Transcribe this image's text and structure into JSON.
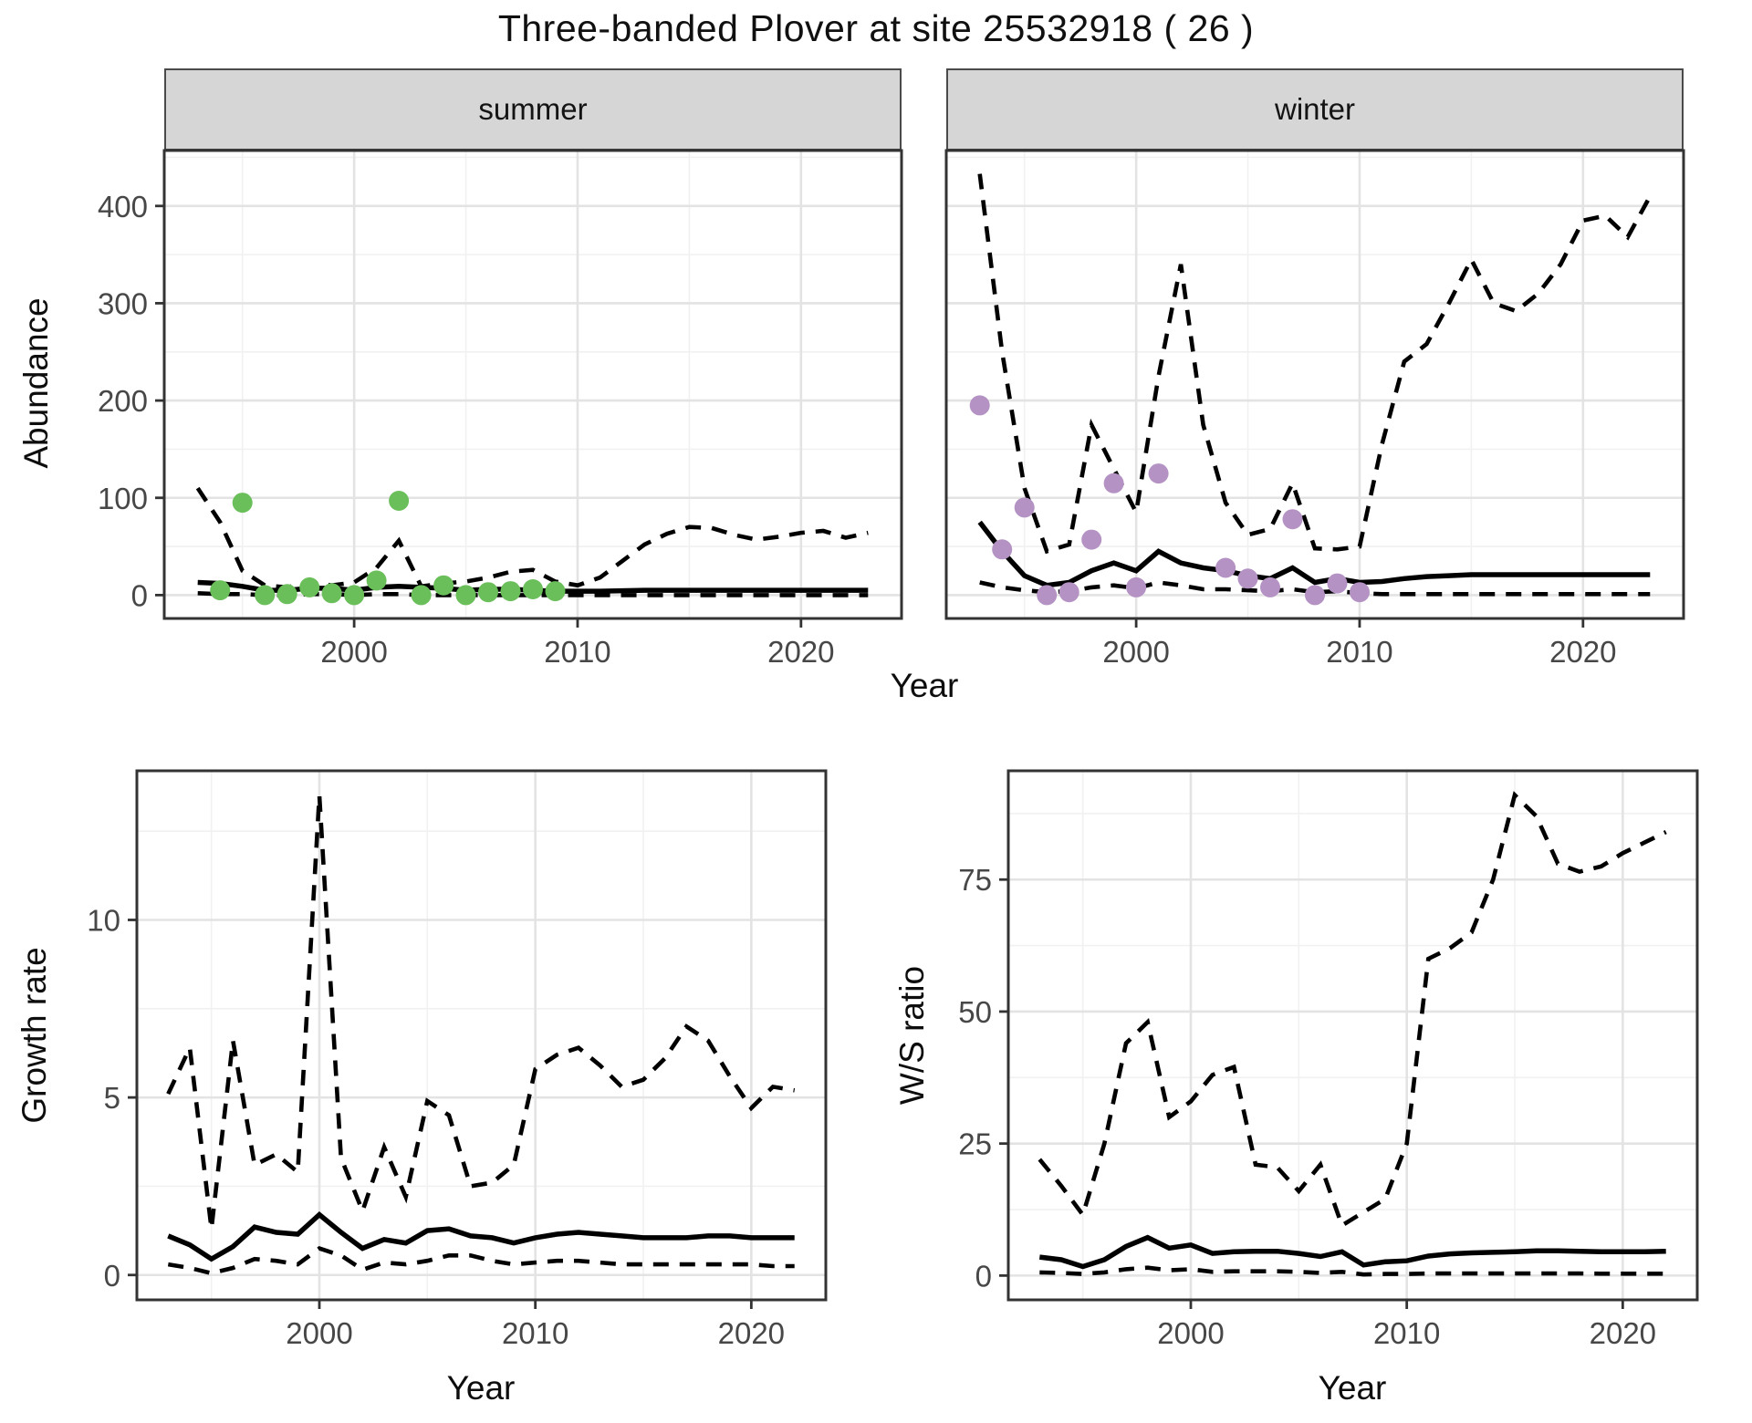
{
  "title": "Three-banded Plover at site 25532918 ( 26 )",
  "colors": {
    "observed_summer": "#6abf5a",
    "observed_winter": "#b492c4",
    "line": "#000000",
    "grid_major": "#e3e3e3",
    "grid_minor": "#f1f1f1",
    "axis_text": "#474747",
    "border": "#333333",
    "strip_bg": "#d6d6d6"
  },
  "chart_data": [
    {
      "id": "abundance_summer",
      "type": "line",
      "title": "summer",
      "xlabel": "Year",
      "ylabel": "Abundance",
      "legend": "none",
      "grid": true,
      "xlim": [
        1991.5,
        2024.5
      ],
      "ylim": [
        -24,
        457
      ],
      "xticks": [
        2000,
        2010,
        2020
      ],
      "yticks": [
        0,
        100,
        200,
        300,
        400
      ],
      "xminor": [
        1995,
        2005,
        2015
      ],
      "yminor": [
        50,
        150,
        250,
        350,
        450
      ],
      "x": [
        1993,
        1994,
        1995,
        1996,
        1997,
        1998,
        1999,
        2000,
        2001,
        2002,
        2003,
        2004,
        2005,
        2006,
        2007,
        2008,
        2009,
        2010,
        2011,
        2012,
        2013,
        2014,
        2015,
        2016,
        2017,
        2018,
        2019,
        2020,
        2021,
        2022,
        2023
      ],
      "series": [
        {
          "name": "upper_ci",
          "style": "dashed",
          "values": [
            110,
            75,
            25,
            10,
            8,
            13,
            10,
            13,
            28,
            56,
            9,
            12,
            14,
            18,
            24,
            26,
            14,
            10,
            18,
            35,
            52,
            63,
            70,
            69,
            62,
            57,
            60,
            64,
            66,
            59,
            64
          ]
        },
        {
          "name": "median",
          "style": "solid",
          "values": [
            13,
            12,
            9,
            5,
            5,
            7,
            7,
            5,
            8,
            9,
            8,
            7,
            5,
            6,
            6,
            5,
            4,
            4,
            4,
            4.5,
            5,
            5,
            5,
            5,
            5,
            5,
            5,
            5,
            5,
            5,
            5
          ]
        },
        {
          "name": "lower_ci",
          "style": "dashed",
          "values": [
            2,
            1,
            1,
            0,
            0,
            1,
            1,
            0,
            1,
            1,
            0,
            0,
            0,
            0,
            0,
            0,
            0,
            0,
            0,
            0,
            0,
            0,
            0,
            0,
            0,
            0,
            0,
            0,
            0,
            0,
            0
          ]
        }
      ],
      "points": {
        "name": "observed_counts",
        "color": "#6abf5a",
        "x": [
          1994,
          1995,
          1996,
          1997,
          1998,
          1999,
          2000,
          2001,
          2002,
          2003,
          2004,
          2005,
          2006,
          2007,
          2008,
          2009
        ],
        "y": [
          5,
          95,
          0,
          1,
          8,
          2,
          0,
          15,
          97,
          0,
          10,
          0,
          3,
          4,
          6,
          4
        ]
      }
    },
    {
      "id": "abundance_winter",
      "type": "line",
      "title": "winter",
      "xlabel": "Year",
      "ylabel": "Abundance",
      "legend": "none",
      "grid": true,
      "xlim": [
        1991.5,
        2024.5
      ],
      "ylim": [
        -24,
        457
      ],
      "xticks": [
        2000,
        2010,
        2020
      ],
      "yticks": [
        0,
        100,
        200,
        300,
        400
      ],
      "xminor": [
        1995,
        2005,
        2015
      ],
      "yminor": [
        50,
        150,
        250,
        350,
        450
      ],
      "x": [
        1993,
        1994,
        1995,
        1996,
        1997,
        1998,
        1999,
        2000,
        2001,
        2002,
        2003,
        2004,
        2005,
        2006,
        2007,
        2008,
        2009,
        2010,
        2011,
        2012,
        2013,
        2014,
        2015,
        2016,
        2017,
        2018,
        2019,
        2020,
        2021,
        2022,
        2023
      ],
      "series": [
        {
          "name": "upper_ci",
          "style": "dashed",
          "values": [
            433,
            250,
            110,
            45,
            52,
            175,
            130,
            85,
            225,
            340,
            175,
            95,
            62,
            68,
            115,
            48,
            47,
            50,
            155,
            240,
            258,
            300,
            345,
            300,
            292,
            310,
            340,
            385,
            390,
            368,
            410
          ]
        },
        {
          "name": "median",
          "style": "solid",
          "values": [
            75,
            45,
            20,
            10,
            13,
            25,
            33,
            25,
            45,
            33,
            28,
            25,
            20,
            17,
            28,
            13,
            17,
            13,
            14,
            17,
            19,
            20,
            21,
            21,
            21,
            21,
            21,
            21,
            21,
            21,
            21
          ]
        },
        {
          "name": "lower_ci",
          "style": "dashed",
          "values": [
            13,
            8,
            5,
            3,
            4,
            8,
            10,
            7,
            13,
            10,
            6,
            6,
            5,
            4,
            6,
            3,
            4,
            2,
            1,
            1,
            1,
            1,
            1,
            1,
            1,
            1,
            1,
            1,
            1,
            1,
            1
          ]
        }
      ],
      "points": {
        "name": "observed_counts",
        "color": "#b492c4",
        "x": [
          1993,
          1994,
          1995,
          1996,
          1997,
          1998,
          1999,
          2000,
          2001,
          2004,
          2005,
          2006,
          2007,
          2008,
          2009,
          2010
        ],
        "y": [
          195,
          47,
          90,
          0,
          3,
          57,
          115,
          8,
          125,
          28,
          17,
          8,
          78,
          0,
          12,
          3
        ]
      }
    },
    {
      "id": "growth_rate",
      "type": "line",
      "title": "",
      "xlabel": "Year",
      "ylabel": "Growth rate",
      "legend": "none",
      "grid": true,
      "xlim": [
        1991.55,
        2023.45
      ],
      "ylim": [
        -0.7,
        14.2
      ],
      "xticks": [
        2000,
        2010,
        2020
      ],
      "yticks": [
        0,
        5,
        10
      ],
      "xminor": [
        1995,
        2005,
        2015
      ],
      "yminor": [
        2.5,
        7.5,
        12.5
      ],
      "x": [
        1993,
        1994,
        1995,
        1996,
        1997,
        1998,
        1999,
        2000,
        2001,
        2002,
        2003,
        2004,
        2005,
        2006,
        2007,
        2008,
        2009,
        2010,
        2011,
        2012,
        2013,
        2014,
        2015,
        2016,
        2017,
        2018,
        2019,
        2020,
        2021,
        2022
      ],
      "series": [
        {
          "name": "upper_ci",
          "style": "dashed",
          "values": [
            5.1,
            6.4,
            1.3,
            6.6,
            3.1,
            3.4,
            2.9,
            13.5,
            3.3,
            1.8,
            3.6,
            2.2,
            4.9,
            4.5,
            2.5,
            2.6,
            3.1,
            5.8,
            6.2,
            6.4,
            5.9,
            5.3,
            5.5,
            6.1,
            7.0,
            6.6,
            5.6,
            4.7,
            5.3,
            5.2
          ]
        },
        {
          "name": "median",
          "style": "solid",
          "values": [
            1.1,
            0.85,
            0.45,
            0.8,
            1.35,
            1.2,
            1.15,
            1.7,
            1.2,
            0.75,
            1.0,
            0.9,
            1.25,
            1.3,
            1.1,
            1.05,
            0.9,
            1.05,
            1.15,
            1.2,
            1.15,
            1.1,
            1.05,
            1.05,
            1.05,
            1.1,
            1.1,
            1.05,
            1.05,
            1.05
          ]
        },
        {
          "name": "lower_ci",
          "style": "dashed",
          "values": [
            0.3,
            0.2,
            0.05,
            0.2,
            0.45,
            0.4,
            0.3,
            0.75,
            0.55,
            0.15,
            0.35,
            0.3,
            0.4,
            0.55,
            0.55,
            0.4,
            0.3,
            0.35,
            0.4,
            0.4,
            0.35,
            0.3,
            0.3,
            0.3,
            0.3,
            0.3,
            0.3,
            0.3,
            0.25,
            0.25
          ]
        }
      ]
    },
    {
      "id": "ws_ratio",
      "type": "line",
      "title": "",
      "xlabel": "Year",
      "ylabel": "W/S ratio",
      "legend": "none",
      "grid": true,
      "xlim": [
        1991.55,
        2023.45
      ],
      "ylim": [
        -4.6,
        95.6
      ],
      "xticks": [
        2000,
        2010,
        2020
      ],
      "yticks": [
        0,
        25,
        50,
        75
      ],
      "xminor": [
        1995,
        2005,
        2015
      ],
      "yminor": [
        12.5,
        37.5,
        62.5,
        87.5
      ],
      "x": [
        1993,
        1994,
        1995,
        1996,
        1997,
        1998,
        1999,
        2000,
        2001,
        2002,
        2003,
        2004,
        2005,
        2006,
        2007,
        2008,
        2009,
        2010,
        2011,
        2012,
        2013,
        2014,
        2015,
        2016,
        2017,
        2018,
        2019,
        2020,
        2021,
        2022
      ],
      "series": [
        {
          "name": "upper_ci",
          "style": "dashed",
          "values": [
            22,
            17,
            11.5,
            25,
            44,
            48,
            30,
            33,
            38,
            39.5,
            21,
            20.5,
            16,
            21,
            9.5,
            12,
            14.5,
            25,
            60,
            62,
            65,
            75,
            91,
            87,
            78,
            76.5,
            77.5,
            80,
            82,
            84
          ]
        },
        {
          "name": "median",
          "style": "solid",
          "values": [
            3.5,
            3.0,
            1.7,
            3.0,
            5.5,
            7.2,
            5.2,
            5.8,
            4.2,
            4.5,
            4.6,
            4.6,
            4.2,
            3.6,
            4.5,
            2.0,
            2.6,
            2.8,
            3.7,
            4.1,
            4.3,
            4.4,
            4.5,
            4.7,
            4.7,
            4.6,
            4.5,
            4.5,
            4.5,
            4.6
          ]
        },
        {
          "name": "lower_ci",
          "style": "dashed",
          "values": [
            0.6,
            0.5,
            0.3,
            0.6,
            1.2,
            1.5,
            1.0,
            1.2,
            0.7,
            0.8,
            0.8,
            0.8,
            0.7,
            0.5,
            0.7,
            0.2,
            0.3,
            0.3,
            0.4,
            0.4,
            0.4,
            0.4,
            0.4,
            0.4,
            0.4,
            0.4,
            0.35,
            0.35,
            0.35,
            0.35
          ]
        }
      ]
    }
  ]
}
